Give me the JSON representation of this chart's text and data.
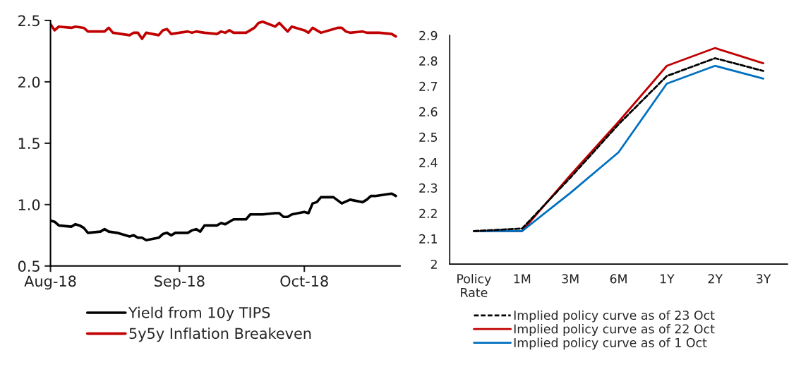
{
  "chart_data": [
    {
      "type": "line",
      "xlim": [
        "2018-08-01",
        "2018-10-24"
      ],
      "xticks": [
        {
          "value": "2018-08-01",
          "label": "Aug-18"
        },
        {
          "value": "2018-09-01",
          "label": "Sep-18"
        },
        {
          "value": "2018-10-01",
          "label": "Oct-18"
        }
      ],
      "ylim": [
        0.5,
        2.5
      ],
      "yticks": [
        {
          "value": 0.5,
          "label": "0.5"
        },
        {
          "value": 1.0,
          "label": "1.0"
        },
        {
          "value": 1.5,
          "label": "1.5"
        },
        {
          "value": 2.0,
          "label": "2.0"
        },
        {
          "value": 2.5,
          "label": "2.5"
        }
      ],
      "grid": false,
      "legend": "bottom",
      "marker": "none",
      "series": [
        {
          "name": "Yield from 10y TIPS",
          "color": "#000000",
          "line_style": "solid",
          "x": [
            "2018-08-01",
            "2018-08-02",
            "2018-08-03",
            "2018-08-06",
            "2018-08-07",
            "2018-08-08",
            "2018-08-09",
            "2018-08-10",
            "2018-08-13",
            "2018-08-14",
            "2018-08-15",
            "2018-08-17",
            "2018-08-20",
            "2018-08-21",
            "2018-08-22",
            "2018-08-23",
            "2018-08-24",
            "2018-08-27",
            "2018-08-28",
            "2018-08-29",
            "2018-08-30",
            "2018-08-31",
            "2018-09-03",
            "2018-09-04",
            "2018-09-05",
            "2018-09-06",
            "2018-09-07",
            "2018-09-10",
            "2018-09-11",
            "2018-09-12",
            "2018-09-14",
            "2018-09-17",
            "2018-09-18",
            "2018-09-20",
            "2018-09-21",
            "2018-09-24",
            "2018-09-25",
            "2018-09-26",
            "2018-09-27",
            "2018-09-28",
            "2018-10-01",
            "2018-10-02",
            "2018-10-03",
            "2018-10-04",
            "2018-10-05",
            "2018-10-08",
            "2018-10-10",
            "2018-10-12",
            "2018-10-15",
            "2018-10-16",
            "2018-10-17",
            "2018-10-18",
            "2018-10-22",
            "2018-10-23"
          ],
          "values": [
            0.87,
            0.86,
            0.83,
            0.82,
            0.84,
            0.83,
            0.81,
            0.77,
            0.78,
            0.8,
            0.78,
            0.77,
            0.74,
            0.75,
            0.73,
            0.73,
            0.71,
            0.73,
            0.76,
            0.77,
            0.75,
            0.77,
            0.77,
            0.79,
            0.8,
            0.78,
            0.83,
            0.83,
            0.85,
            0.84,
            0.88,
            0.88,
            0.92,
            0.92,
            0.92,
            0.93,
            0.93,
            0.9,
            0.9,
            0.92,
            0.94,
            0.93,
            1.01,
            1.02,
            1.06,
            1.06,
            1.01,
            1.04,
            1.02,
            1.04,
            1.07,
            1.07,
            1.09,
            1.07
          ]
        },
        {
          "name": "5y5y Inflation Breakeven",
          "color": "#c00000",
          "line_style": "solid",
          "x": [
            "2018-08-01",
            "2018-08-02",
            "2018-08-03",
            "2018-08-06",
            "2018-08-07",
            "2018-08-09",
            "2018-08-10",
            "2018-08-14",
            "2018-08-15",
            "2018-08-16",
            "2018-08-20",
            "2018-08-21",
            "2018-08-22",
            "2018-08-23",
            "2018-08-24",
            "2018-08-27",
            "2018-08-28",
            "2018-08-29",
            "2018-08-30",
            "2018-09-03",
            "2018-09-04",
            "2018-09-05",
            "2018-09-07",
            "2018-09-10",
            "2018-09-11",
            "2018-09-12",
            "2018-09-13",
            "2018-09-14",
            "2018-09-17",
            "2018-09-19",
            "2018-09-20",
            "2018-09-21",
            "2018-09-24",
            "2018-09-25",
            "2018-09-27",
            "2018-09-28",
            "2018-10-01",
            "2018-10-02",
            "2018-10-03",
            "2018-10-04",
            "2018-10-05",
            "2018-10-09",
            "2018-10-10",
            "2018-10-11",
            "2018-10-12",
            "2018-10-15",
            "2018-10-16",
            "2018-10-19",
            "2018-10-22",
            "2018-10-23"
          ],
          "values": [
            2.47,
            2.42,
            2.45,
            2.44,
            2.45,
            2.44,
            2.41,
            2.41,
            2.44,
            2.4,
            2.38,
            2.4,
            2.4,
            2.35,
            2.4,
            2.38,
            2.42,
            2.43,
            2.39,
            2.41,
            2.4,
            2.41,
            2.4,
            2.39,
            2.41,
            2.4,
            2.42,
            2.4,
            2.4,
            2.44,
            2.48,
            2.49,
            2.45,
            2.48,
            2.41,
            2.45,
            2.42,
            2.4,
            2.44,
            2.42,
            2.4,
            2.44,
            2.44,
            2.41,
            2.4,
            2.41,
            2.4,
            2.4,
            2.39,
            2.37
          ]
        }
      ]
    },
    {
      "type": "line",
      "categories": [
        "Policy\nRate",
        "1M",
        "3M",
        "6M",
        "1Y",
        "2Y",
        "3Y"
      ],
      "ylim": [
        2,
        2.9
      ],
      "yticks": [
        2,
        2.1,
        2.2,
        2.3,
        2.4,
        2.5,
        2.6,
        2.7,
        2.8,
        2.9
      ],
      "grid": false,
      "legend": "bottom",
      "marker": "none",
      "series": [
        {
          "name": "Implied policy curve as of 23 Oct",
          "color": "#000000",
          "line_style": "dashed",
          "values": [
            2.13,
            2.14,
            2.34,
            2.55,
            2.74,
            2.81,
            2.76
          ]
        },
        {
          "name": "Implied policy curve as of 22 Oct",
          "color": "#c00000",
          "line_style": "solid",
          "values": [
            2.13,
            2.13,
            2.35,
            2.56,
            2.78,
            2.85,
            2.79
          ]
        },
        {
          "name": "Implied policy curve as of 1 Oct",
          "color": "#0070c0",
          "line_style": "solid",
          "values": [
            2.13,
            2.13,
            2.28,
            2.44,
            2.71,
            2.78,
            2.73
          ]
        }
      ]
    }
  ]
}
